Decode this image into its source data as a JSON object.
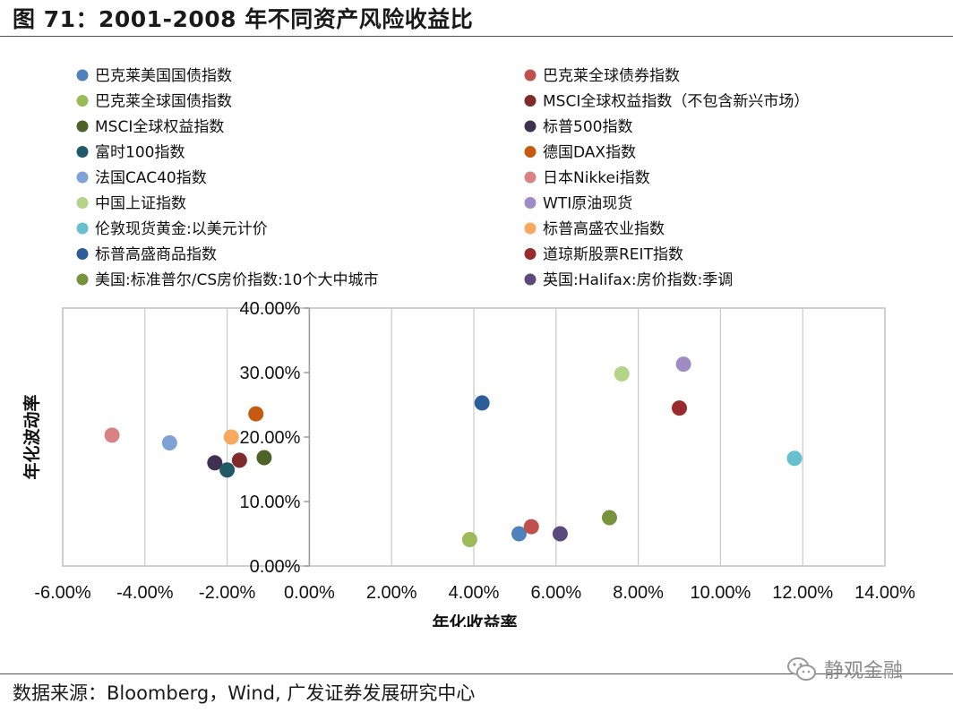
{
  "figure": {
    "title": "图 71：2001-2008 年不同资产风险收益比",
    "source": "数据来源：Bloomberg，Wind, 广发证券发展研究中心",
    "watermark": {
      "text": "静观金融",
      "icon": "wechat-icon"
    }
  },
  "chart_data": {
    "type": "scatter",
    "title": "",
    "xlabel": "年化收益率",
    "ylabel": "年化波动率",
    "xlim": [
      -6,
      14
    ],
    "ylim": [
      0,
      40
    ],
    "x_ticks": [
      "-6.00%",
      "-4.00%",
      "-2.00%",
      "0.00%",
      "2.00%",
      "4.00%",
      "6.00%",
      "8.00%",
      "10.00%",
      "12.00%",
      "14.00%"
    ],
    "y_ticks": [
      "0.00%",
      "10.00%",
      "20.00%",
      "30.00%",
      "40.00%"
    ],
    "grid": "vertical",
    "legend_position": "top",
    "series": [
      {
        "name": "巴克莱美国国债指数",
        "color": "#4f81bd",
        "x": 5.1,
        "y": 5.0
      },
      {
        "name": "巴克莱全球债券指数",
        "color": "#c0504d",
        "x": 5.4,
        "y": 6.1
      },
      {
        "name": "巴克莱全球国债指数",
        "color": "#9bbb59",
        "x": 3.9,
        "y": 4.1
      },
      {
        "name": "MSCI全球权益指数（不包含新兴市场）",
        "color": "#7f2b2b",
        "x": -1.7,
        "y": 16.4
      },
      {
        "name": "MSCI全球权益指数",
        "color": "#4f6228",
        "x": -1.1,
        "y": 16.8
      },
      {
        "name": "标普500指数",
        "color": "#403152",
        "x": -2.3,
        "y": 16.0
      },
      {
        "name": "富时100指数",
        "color": "#215967",
        "x": -2.0,
        "y": 14.9
      },
      {
        "name": "德国DAX指数",
        "color": "#c55a11",
        "x": -1.3,
        "y": 23.6
      },
      {
        "name": "法国CAC40指数",
        "color": "#7ea1d6",
        "x": -3.4,
        "y": 19.1
      },
      {
        "name": "日本Nikkei指数",
        "color": "#d98284",
        "x": -4.8,
        "y": 20.3
      },
      {
        "name": "中国上证指数",
        "color": "#b4d487",
        "x": 7.6,
        "y": 29.8
      },
      {
        "name": "WTI原油现货",
        "color": "#a08cc4",
        "x": 9.1,
        "y": 31.3
      },
      {
        "name": "伦敦现货黄金:以美元计价",
        "color": "#67bfd0",
        "x": 11.8,
        "y": 16.7
      },
      {
        "name": "标普高盛农业指数",
        "color": "#f9a860",
        "x": -1.9,
        "y": 20.0
      },
      {
        "name": "标普高盛商品指数",
        "color": "#2e5e9a",
        "x": 4.2,
        "y": 25.3
      },
      {
        "name": "道琼斯股票REIT指数",
        "color": "#982c2c",
        "x": 9.0,
        "y": 24.5
      },
      {
        "name": "美国:标准普尔/CS房价指数:10个大中城市",
        "color": "#77933c",
        "x": 7.3,
        "y": 7.5
      },
      {
        "name": "英国:Halifax:房价指数:季调",
        "color": "#5b4a7c",
        "x": 6.1,
        "y": 5.0
      }
    ]
  }
}
